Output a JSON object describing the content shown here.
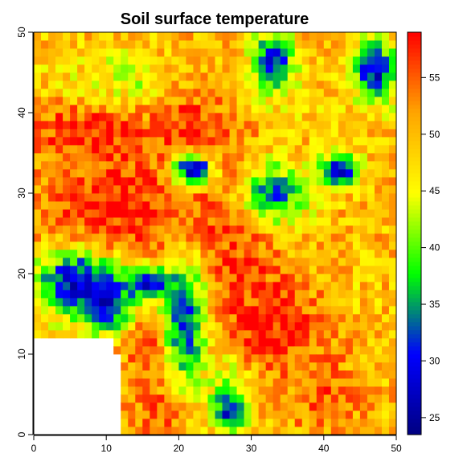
{
  "chart_data": {
    "type": "heatmap",
    "title": "Soil surface temperature",
    "xlabel": "",
    "ylabel": "",
    "xlim": [
      0,
      50
    ],
    "ylim": [
      0,
      50
    ],
    "grid_size": [
      50,
      50
    ],
    "x_ticks": [
      0,
      10,
      20,
      30,
      40,
      50
    ],
    "y_ticks": [
      0,
      10,
      20,
      30,
      40,
      50
    ],
    "x_tick_labels": [
      "0",
      "10",
      "20",
      "30",
      "40",
      "50"
    ],
    "y_tick_labels": [
      "0",
      "10",
      "20",
      "30",
      "40",
      "50"
    ],
    "value_range": [
      23.5,
      59
    ],
    "colorbar_ticks": [
      25,
      30,
      35,
      40,
      45,
      50,
      55
    ],
    "colorbar_tick_labels": [
      "25",
      "30",
      "35",
      "40",
      "45",
      "50",
      "55"
    ],
    "colorbar_position": "right",
    "color_stops": [
      "#000080",
      "#0000ff",
      "#00ff00",
      "#ffff00",
      "#ffa500",
      "#ff0000"
    ],
    "missing_regions": [
      {
        "x": [
          0,
          12
        ],
        "y": [
          0,
          10
        ]
      },
      {
        "x": [
          0,
          11
        ],
        "y": [
          10,
          12
        ]
      }
    ],
    "features": [
      {
        "v": 30,
        "x": 33,
        "y": 46,
        "rx": 3,
        "ry": 4
      },
      {
        "v": 28,
        "x": 47,
        "y": 45,
        "rx": 3,
        "ry": 4
      },
      {
        "v": 30,
        "x": 10,
        "y": 43,
        "rx": 4,
        "ry": 2.5
      },
      {
        "v": 42,
        "x": 11,
        "y": 43,
        "rx": 6,
        "ry": 4
      },
      {
        "v": 58,
        "x": 8,
        "y": 38,
        "rx": 8,
        "ry": 4
      },
      {
        "v": 58,
        "x": 12,
        "y": 28,
        "rx": 12,
        "ry": 8
      },
      {
        "v": 58,
        "x": 22,
        "y": 37,
        "rx": 5,
        "ry": 5
      },
      {
        "v": 58,
        "x": 28,
        "y": 28,
        "rx": 5,
        "ry": 7
      },
      {
        "v": 28,
        "x": 22,
        "y": 33,
        "rx": 3,
        "ry": 2
      },
      {
        "v": 34,
        "x": 33,
        "y": 30,
        "rx": 5,
        "ry": 4
      },
      {
        "v": 28,
        "x": 42,
        "y": 33,
        "rx": 3,
        "ry": 2
      },
      {
        "v": 28,
        "x": 6,
        "y": 19,
        "rx": 6,
        "ry": 4
      },
      {
        "v": 28,
        "x": 10,
        "y": 16,
        "rx": 4,
        "ry": 3
      },
      {
        "v": 57,
        "x": 16,
        "y": 11,
        "rx": 3,
        "ry": 4
      },
      {
        "v": 57,
        "x": 17,
        "y": 3,
        "rx": 3,
        "ry": 3
      },
      {
        "v": 28,
        "x": 21,
        "y": 14,
        "rx": 3,
        "ry": 7
      },
      {
        "v": 29,
        "x": 16,
        "y": 19,
        "rx": 4,
        "ry": 2
      },
      {
        "v": 40,
        "x": 27,
        "y": 6,
        "rx": 3,
        "ry": 5
      },
      {
        "v": 28,
        "x": 27,
        "y": 3,
        "rx": 2,
        "ry": 2
      },
      {
        "v": 58,
        "x": 33,
        "y": 14,
        "rx": 8,
        "ry": 6
      },
      {
        "v": 58,
        "x": 29,
        "y": 20,
        "rx": 3,
        "ry": 3
      },
      {
        "v": 55,
        "x": 40,
        "y": 5,
        "rx": 5,
        "ry": 5
      },
      {
        "v": 49,
        "x": 45,
        "y": 18,
        "rx": 5,
        "ry": 6
      },
      {
        "v": 48,
        "x": 40,
        "y": 40,
        "rx": 5,
        "ry": 4
      },
      {
        "v": 48,
        "x": 5,
        "y": 46,
        "rx": 6,
        "ry": 4
      }
    ]
  }
}
